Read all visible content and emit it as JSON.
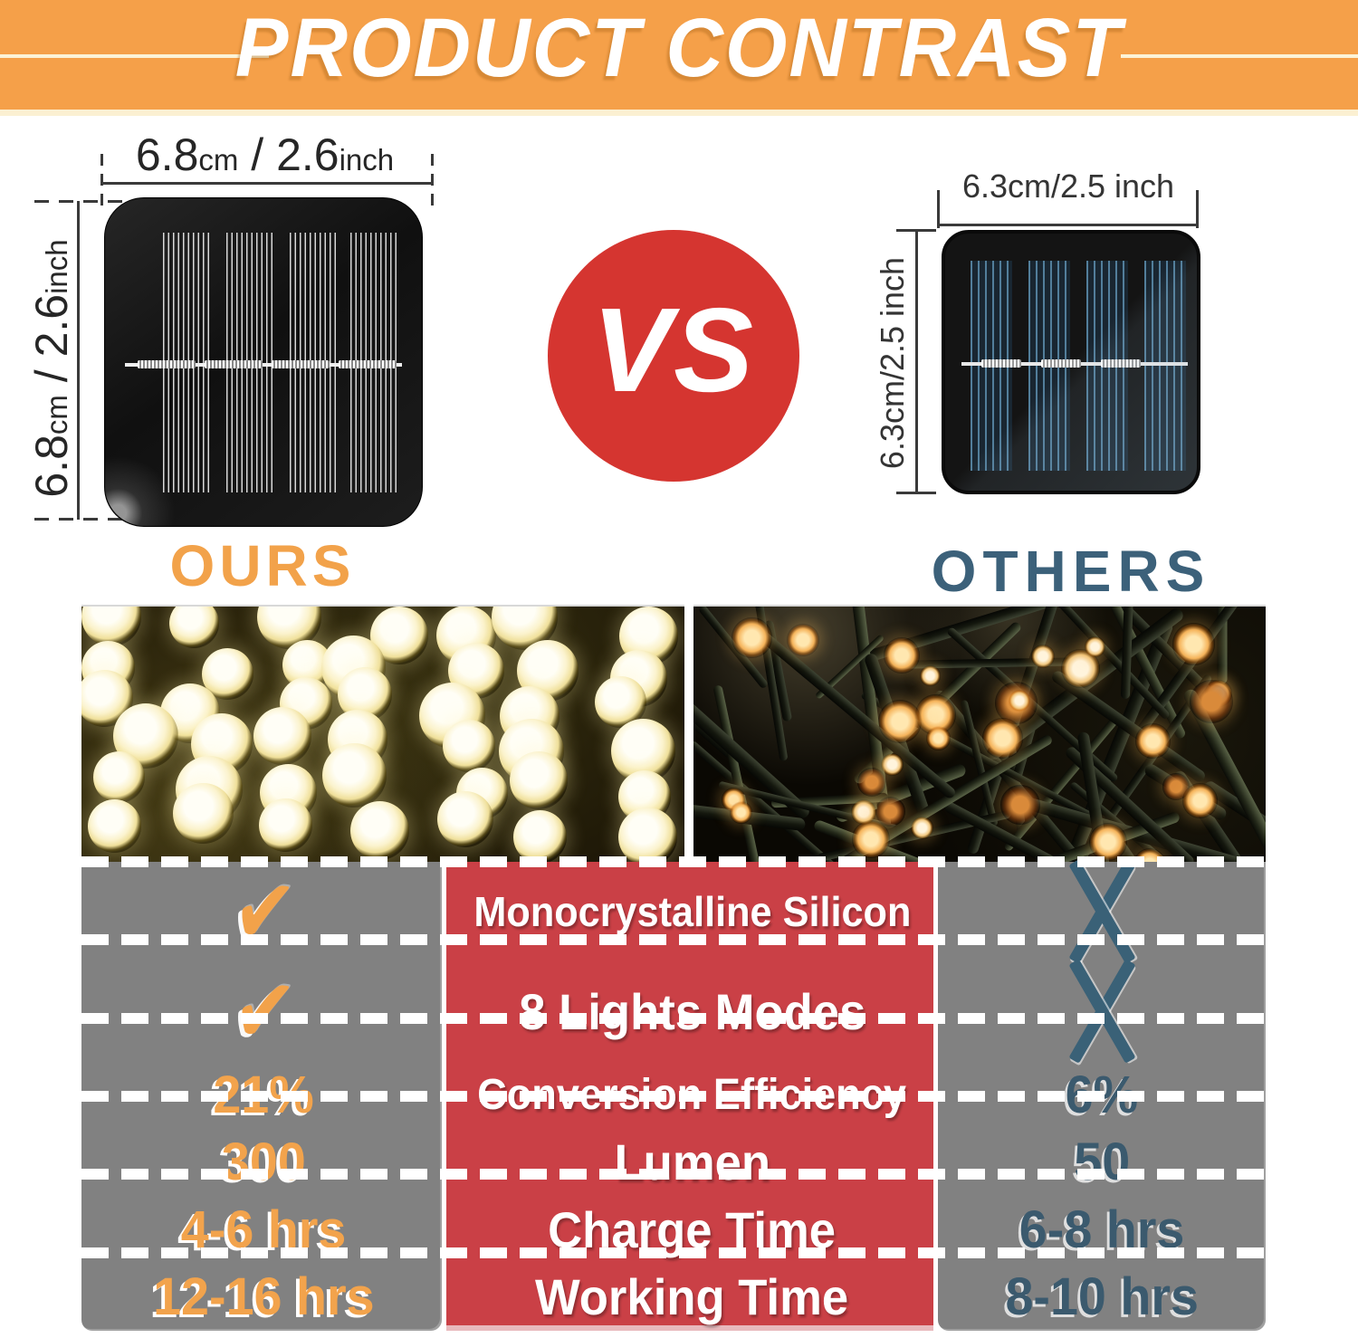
{
  "banner": {
    "title": "PRODUCT CONTRAST"
  },
  "ours": {
    "label": "OURS",
    "width_dim": {
      "v1": "6.8",
      "u1": "cm",
      "v2": " / 2.6",
      "u2": "inch"
    },
    "height_dim": {
      "v1": "6.8",
      "u1": "cm",
      "v2": " / 2.6",
      "u2": "inch"
    }
  },
  "vs": {
    "label": "VS"
  },
  "others": {
    "label": "OTHERS",
    "width_dim": "6.3cm/2.5 inch",
    "height_dim": "6.3cm/2.5 inch"
  },
  "comparison_table": {
    "rows": [
      {
        "ours": "check",
        "feature": "Monocrystalline Silicon",
        "others": "cross"
      },
      {
        "ours": "check",
        "feature": "8 Lights Modes",
        "others": "cross"
      },
      {
        "ours": "21%",
        "feature": "Conversion Efficiency",
        "others": "6%"
      },
      {
        "ours": "300",
        "feature": "Lumen",
        "others": "50"
      },
      {
        "ours": "4-6 hrs",
        "feature": "Charge Time",
        "others": "6-8 hrs"
      },
      {
        "ours": "12-16 hrs",
        "feature": "Working Time",
        "others": "8-10 hrs"
      }
    ]
  },
  "colors": {
    "banner_orange": "#F5A049",
    "ours_orange": "#F2A24A",
    "others_teal": "#3C617A",
    "vs_red": "#D53530",
    "table_red": "#CA4046",
    "table_gray": "#818181"
  }
}
